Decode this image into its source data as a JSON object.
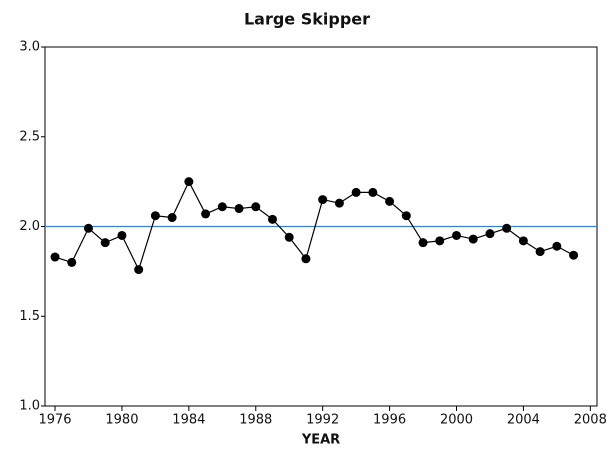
{
  "chart_data": {
    "type": "line",
    "title": "Large Skipper",
    "x_label": "YEAR",
    "x": [
      1976,
      1977,
      1978,
      1979,
      1980,
      1981,
      1982,
      1983,
      1984,
      1985,
      1986,
      1987,
      1988,
      1989,
      1990,
      1991,
      1992,
      1993,
      1994,
      1995,
      1996,
      1997,
      1998,
      1999,
      2000,
      2001,
      2002,
      2003,
      2004,
      2005,
      2006,
      2007
    ],
    "values": [
      1.83,
      1.8,
      1.99,
      1.91,
      1.95,
      1.76,
      2.06,
      2.05,
      2.25,
      2.07,
      2.11,
      2.1,
      2.11,
      2.04,
      1.94,
      1.82,
      2.15,
      2.13,
      2.19,
      2.19,
      2.14,
      2.06,
      1.91,
      1.92,
      1.95,
      1.93,
      1.96,
      1.99,
      1.92,
      1.86,
      1.89,
      1.84
    ],
    "color": "#000000",
    "reference_line": {
      "value": 2.0,
      "color": "#3a7fd5"
    },
    "xlim": [
      1975.4,
      2008.4
    ],
    "xticks": [
      1976,
      1980,
      1984,
      1988,
      1992,
      1996,
      2000,
      2004,
      2008
    ],
    "ylim": [
      1.0,
      3.0
    ],
    "yticks": [
      {
        "value": 1.0,
        "label": "1.0"
      },
      1.5,
      {
        "value": 2.0,
        "label": "2.0"
      },
      2.5,
      {
        "value": 3.0,
        "label": "3.0"
      }
    ],
    "grid": false
  }
}
